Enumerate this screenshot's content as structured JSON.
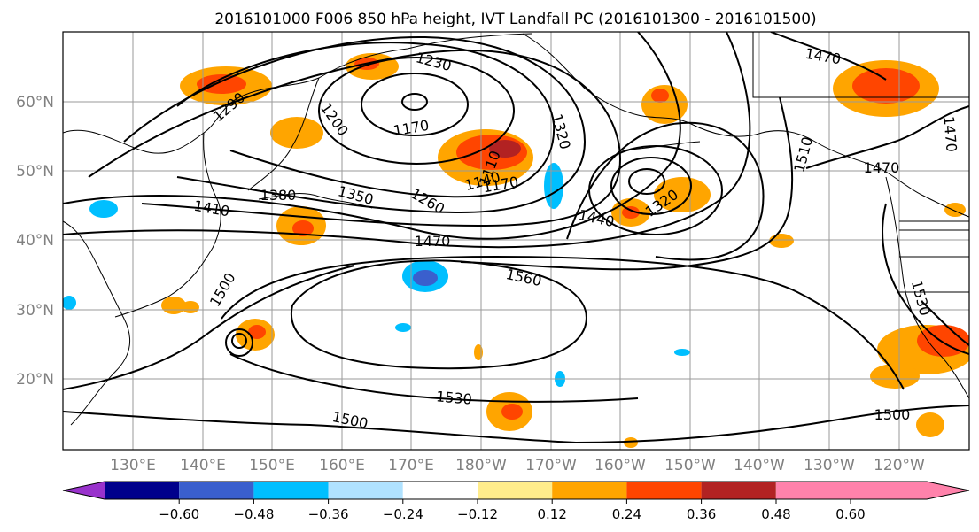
{
  "title": "2016101000 F006 850 hPa height, IVT Landfall PC (2016101300 - 2016101500)",
  "lat_labels": [
    "60°N",
    "50°N",
    "40°N",
    "30°N",
    "20°N"
  ],
  "lon_labels": [
    "130°E",
    "140°E",
    "150°E",
    "160°E",
    "170°E",
    "180°W",
    "170°W",
    "160°W",
    "150°W",
    "140°W",
    "130°W",
    "120°W"
  ],
  "contour_labels": [
    "1230",
    "1290",
    "1200",
    "1170",
    "1320",
    "1110",
    "1140",
    "1170",
    "1260",
    "1350",
    "1380",
    "1410",
    "1470",
    "1440",
    "1320",
    "1470",
    "1510",
    "1470",
    "1470",
    "1560",
    "1500",
    "1530",
    "1530",
    "1500",
    "1500"
  ],
  "colorbar": {
    "colors": [
      "#9932cc",
      "#00008b",
      "#3a5fcd",
      "#00bfff",
      "#b0e2ff",
      "#ffffff",
      "#ffec8b",
      "#ffa500",
      "#ff4500",
      "#b22222",
      "#ff82ab"
    ],
    "tick_labels": [
      "−0.60",
      "−0.48",
      "−0.36",
      "−0.24",
      "−0.12",
      "0.12",
      "0.24",
      "0.36",
      "0.48",
      "0.60"
    ]
  }
}
